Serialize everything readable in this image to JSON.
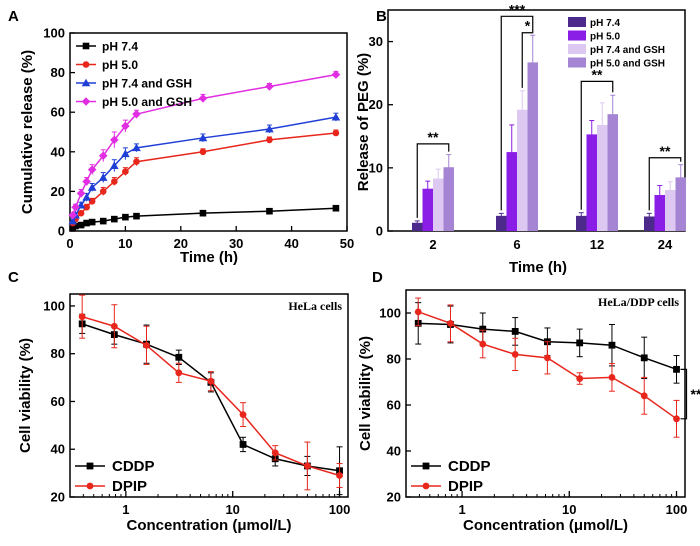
{
  "chart_data": [
    {
      "panel": "A",
      "type": "line",
      "xlabel": "Time (h)",
      "ylabel": "Cumulative release (%)",
      "xlim": [
        0,
        50
      ],
      "ylim": [
        0,
        100
      ],
      "xticks": [
        0,
        10,
        20,
        30,
        40,
        50
      ],
      "yticks": [
        0,
        20,
        40,
        60,
        80,
        100
      ],
      "legend_position": "top-left",
      "series": [
        {
          "name": "pH 7.4",
          "color": "#000000",
          "marker": "square",
          "x": [
            0.5,
            1,
            2,
            3,
            4,
            6,
            8,
            10,
            12,
            24,
            36,
            48
          ],
          "y": [
            1.5,
            2.5,
            3,
            4,
            4.5,
            5,
            6,
            7,
            7.5,
            9,
            10,
            11.5
          ],
          "err": [
            0.5,
            0.5,
            0.5,
            0.5,
            0.5,
            0.8,
            0.8,
            0.8,
            0.8,
            1,
            1,
            1
          ]
        },
        {
          "name": "pH 5.0",
          "color": "#e8261c",
          "marker": "circle",
          "x": [
            0.5,
            1,
            2,
            3,
            4,
            6,
            8,
            10,
            12,
            24,
            36,
            48
          ],
          "y": [
            4,
            6,
            9,
            12,
            15,
            20,
            25,
            30,
            35,
            40,
            46,
            49.5
          ],
          "err": [
            1,
            1,
            1,
            1.5,
            1.5,
            2,
            2,
            2,
            2,
            1.5,
            1.5,
            1.5
          ]
        },
        {
          "name": "pH 7.4 and GSH",
          "color": "#1f3fd6",
          "marker": "triangle",
          "x": [
            0.5,
            1,
            2,
            3,
            4,
            6,
            8,
            10,
            12,
            24,
            36,
            48
          ],
          "y": [
            5,
            8,
            13,
            17,
            22,
            27,
            33,
            39,
            42,
            47,
            51.5,
            57.5
          ],
          "err": [
            1,
            1,
            1.5,
            2,
            2,
            2.5,
            3,
            3,
            2,
            2,
            2,
            2
          ]
        },
        {
          "name": "pH 5.0 and GSH",
          "color": "#e22ee2",
          "marker": "diamond",
          "x": [
            0.5,
            1,
            2,
            3,
            4,
            6,
            8,
            10,
            12,
            24,
            36,
            48
          ],
          "y": [
            8,
            12,
            19,
            25,
            31,
            38,
            46,
            53,
            59,
            67,
            73,
            79
          ],
          "err": [
            1,
            1.5,
            2,
            2,
            2.5,
            3,
            4,
            3,
            2,
            2,
            1.5,
            1.5
          ]
        }
      ]
    },
    {
      "panel": "B",
      "type": "bar",
      "xlabel": "Time (h)",
      "ylabel": "Release of PEG (%)",
      "ylim": [
        0,
        35
      ],
      "yticks": [
        0,
        10,
        20,
        30
      ],
      "categories": [
        "2",
        "6",
        "12",
        "24"
      ],
      "legend_position": "top-right",
      "series": [
        {
          "name": "pH 7.4",
          "color": "#4b2a8c",
          "values": [
            1.3,
            2.4,
            2.4,
            2.3
          ],
          "err": [
            0.3,
            0.4,
            0.5,
            0.5
          ]
        },
        {
          "name": "pH 5.0",
          "color": "#8a1ee6",
          "values": [
            6.7,
            12.5,
            15.3,
            5.7
          ],
          "err": [
            1.2,
            4.3,
            2.2,
            1.5
          ]
        },
        {
          "name": "pH 7.4 and GSH",
          "color": "#dcc8f0",
          "values": [
            8.3,
            19.2,
            16.8,
            6.5
          ],
          "err": [
            1.5,
            3.0,
            3.5,
            1.3
          ]
        },
        {
          "name": "pH 5.0 and GSH",
          "color": "#a584d4",
          "values": [
            10.1,
            26.7,
            18.5,
            8.5
          ],
          "err": [
            2.0,
            4.3,
            3.0,
            2.0
          ]
        }
      ],
      "annotations": [
        {
          "label": "**",
          "category": "2",
          "from": 0,
          "to": 3,
          "y": 13.8
        },
        {
          "label": "***",
          "category": "6",
          "from": 0,
          "to": 3,
          "y": 34.0
        },
        {
          "label": "*",
          "category": "6",
          "from": 2,
          "to": 3,
          "y": 31.4
        },
        {
          "label": "**",
          "category": "12",
          "from": 0,
          "to": 3,
          "y": 23.7
        },
        {
          "label": "**",
          "category": "24",
          "from": 0,
          "to": 3,
          "y": 11.6
        }
      ]
    },
    {
      "panel": "C",
      "type": "line",
      "xscale": "log",
      "xlabel": "Concentration (μmol/L)",
      "ylabel": "Cell viability (%)",
      "xlim": [
        0.3,
        120
      ],
      "ylim": [
        20,
        105
      ],
      "xticks": [
        1,
        10,
        100
      ],
      "yticks": [
        20,
        40,
        60,
        80,
        100
      ],
      "corner_label": "HeLa cells",
      "legend_position": "bottom-left",
      "series": [
        {
          "name": "CDDP",
          "color": "#000000",
          "marker": "square",
          "x": [
            0.39,
            0.78,
            1.56,
            3.13,
            6.25,
            12.5,
            25,
            50,
            100
          ],
          "y": [
            92.5,
            88,
            84,
            78.5,
            68,
            42,
            36,
            33,
            31
          ],
          "err": [
            4,
            4,
            8,
            3,
            4,
            3,
            3,
            4,
            10
          ]
        },
        {
          "name": "DPIP",
          "color": "#e8261c",
          "marker": "circle",
          "x": [
            0.39,
            0.78,
            1.56,
            3.13,
            6.25,
            12.5,
            25,
            50,
            100
          ],
          "y": [
            95.5,
            91.5,
            83.5,
            72,
            68.5,
            54.5,
            38.5,
            33,
            29
          ],
          "err": [
            9,
            9,
            8,
            4,
            4,
            5,
            3,
            10,
            5
          ]
        }
      ]
    },
    {
      "panel": "D",
      "type": "line",
      "xscale": "log",
      "xlabel": "Concentration (μmol/L)",
      "ylabel": "Cell viability (%)",
      "xlim": [
        0.3,
        120
      ],
      "ylim": [
        20,
        110
      ],
      "xticks": [
        1,
        10,
        100
      ],
      "yticks": [
        20,
        40,
        60,
        80,
        100
      ],
      "corner_label": "HeLa/DDP cells",
      "legend_position": "bottom-left",
      "series": [
        {
          "name": "CDDP",
          "color": "#000000",
          "marker": "square",
          "x": [
            0.39,
            0.78,
            1.56,
            3.13,
            6.25,
            12.5,
            25,
            50,
            100
          ],
          "y": [
            95.5,
            95,
            93,
            92,
            87.5,
            87,
            86,
            80.5,
            75.5
          ],
          "err": [
            9,
            8,
            7,
            6,
            6,
            6,
            9,
            9,
            6
          ]
        },
        {
          "name": "DPIP",
          "color": "#e8261c",
          "marker": "circle",
          "x": [
            0.39,
            0.78,
            1.56,
            3.13,
            6.25,
            12.5,
            25,
            50,
            100
          ],
          "y": [
            100.5,
            95.5,
            86.5,
            82,
            80.5,
            71.5,
            72,
            64,
            54
          ],
          "err": [
            6,
            8,
            6,
            7,
            7,
            2.5,
            6,
            8,
            8
          ]
        }
      ],
      "annotations": [
        {
          "label": "**",
          "between": "100"
        }
      ]
    }
  ]
}
